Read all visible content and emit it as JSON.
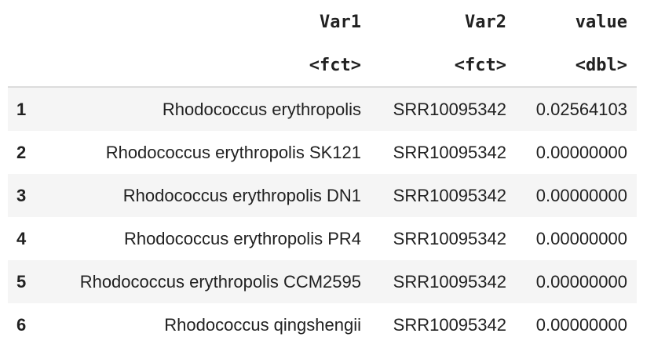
{
  "table": {
    "columns": [
      {
        "name": "Var1",
        "type": "<fct>"
      },
      {
        "name": "Var2",
        "type": "<fct>"
      },
      {
        "name": "value",
        "type": "<dbl>"
      }
    ],
    "rows": [
      {
        "index": "1",
        "var1": "Rhodococcus erythropolis",
        "var2": "SRR10095342",
        "value": "0.02564103"
      },
      {
        "index": "2",
        "var1": "Rhodococcus erythropolis SK121",
        "var2": "SRR10095342",
        "value": "0.00000000"
      },
      {
        "index": "3",
        "var1": "Rhodococcus erythropolis DN1",
        "var2": "SRR10095342",
        "value": "0.00000000"
      },
      {
        "index": "4",
        "var1": "Rhodococcus erythropolis PR4",
        "var2": "SRR10095342",
        "value": "0.00000000"
      },
      {
        "index": "5",
        "var1": "Rhodococcus erythropolis CCM2595",
        "var2": "SRR10095342",
        "value": "0.00000000"
      },
      {
        "index": "6",
        "var1": "Rhodococcus qingshengii",
        "var2": "SRR10095342",
        "value": "0.00000000"
      }
    ]
  }
}
